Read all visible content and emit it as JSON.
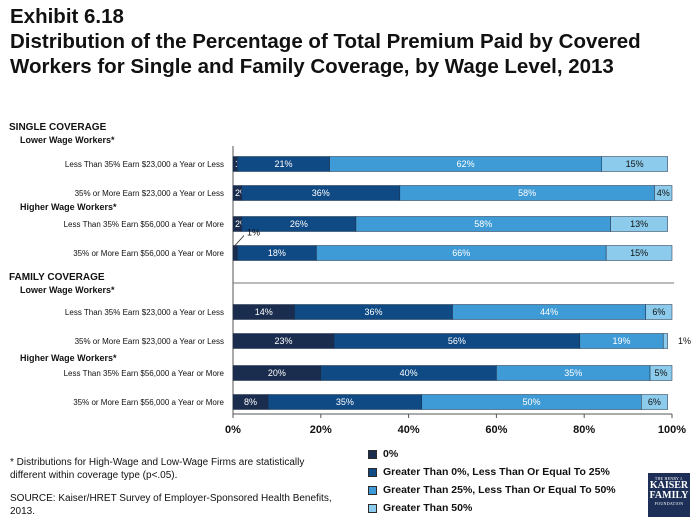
{
  "header": {
    "exhibit": "Exhibit 6.18",
    "title_line1": "Distribution of the Percentage of Total Premium Paid by Covered",
    "title_line2": "Workers for Single and Family Coverage, by Wage Level, 2013"
  },
  "chart_data": {
    "type": "bar",
    "orientation": "horizontal",
    "stacked": true,
    "xlim": [
      0,
      100
    ],
    "x_ticks": [
      "0%",
      "20%",
      "40%",
      "60%",
      "80%",
      "100%"
    ],
    "groups": [
      {
        "label": "SINGLE COVERAGE",
        "subgroups": [
          {
            "label": "Lower Wage Workers*",
            "rows": [
              {
                "label": "Less Than 35% Earn $23,000 a Year or Less",
                "values": [
                  1,
                  21,
                  62,
                  15
                ],
                "labels": [
                  "1%",
                  "21%",
                  "62%",
                  "15%"
                ]
              },
              {
                "label": "35% or More Earn $23,000 a Year or Less",
                "values": [
                  2,
                  36,
                  58,
                  4
                ],
                "labels": [
                  "2%",
                  "36%",
                  "58%",
                  "4%"
                ]
              }
            ]
          },
          {
            "label": "Higher Wage Workers*",
            "rows": [
              {
                "label": "Less Than 35% Earn $56,000 a Year or More",
                "values": [
                  2,
                  26,
                  58,
                  13
                ],
                "labels": [
                  "2%",
                  "26%",
                  "58%",
                  "13%"
                ]
              },
              {
                "label": "35% or More Earn $56,000 a Year or More",
                "values": [
                  1,
                  18,
                  66,
                  15
                ],
                "labels": [
                  "1%",
                  "18%",
                  "66%",
                  "15%"
                ]
              }
            ]
          }
        ]
      },
      {
        "label": "FAMILY COVERAGE",
        "subgroups": [
          {
            "label": "Lower Wage Workers*",
            "rows": [
              {
                "label": "Less Than 35% Earn $23,000 a Year or Less",
                "values": [
                  14,
                  36,
                  44,
                  6
                ],
                "labels": [
                  "14%",
                  "36%",
                  "44%",
                  "6%"
                ]
              },
              {
                "label": "35% or More Earn $23,000 a Year or Less",
                "values": [
                  23,
                  56,
                  19,
                  1
                ],
                "labels": [
                  "23%",
                  "56%",
                  "19%",
                  "1%"
                ]
              }
            ]
          },
          {
            "label": "Higher Wage Workers*",
            "rows": [
              {
                "label": "Less Than 35% Earn $56,000 a Year or More",
                "values": [
                  20,
                  40,
                  35,
                  5
                ],
                "labels": [
                  "20%",
                  "40%",
                  "35%",
                  "5%"
                ]
              },
              {
                "label": "35% or More Earn $56,000 a Year or More",
                "values": [
                  8,
                  35,
                  50,
                  6
                ],
                "labels": [
                  "8%",
                  "35%",
                  "50%",
                  "6%"
                ]
              }
            ]
          }
        ]
      }
    ],
    "series": [
      {
        "name": "0%",
        "color": "#1b2d4f"
      },
      {
        "name": "Greater Than 0%, Less Than Or Equal To 25%",
        "color": "#0f4a85"
      },
      {
        "name": "Greater Than 25%, Less Than Or Equal To 50%",
        "color": "#3f9bd6"
      },
      {
        "name": "Greater Than 50%",
        "color": "#8ccbeb"
      }
    ]
  },
  "footnote": "* Distributions for High-Wage and Low-Wage Firms are statistically different within coverage type (p<.05).",
  "source": "SOURCE:  Kaiser/HRET Survey of Employer-Sponsored Health Benefits, 2013.",
  "logo": {
    "line1": "THE HENRY J.",
    "line2": "KAISER",
    "line3": "FAMILY",
    "line4": "FOUNDATION"
  }
}
